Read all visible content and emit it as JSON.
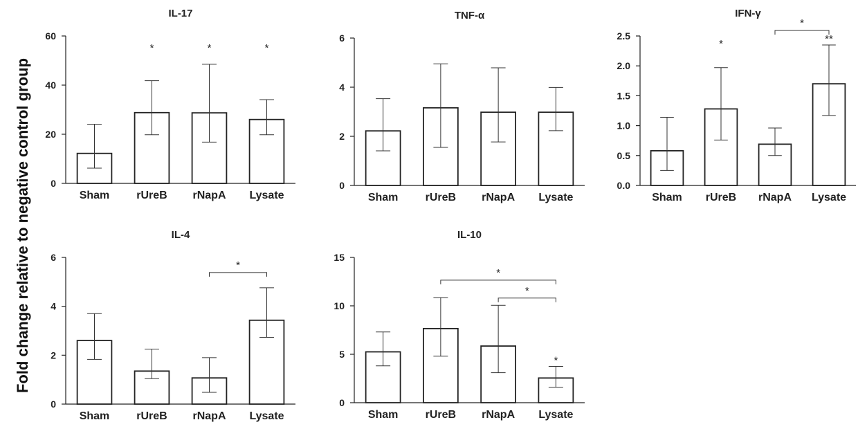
{
  "ylabel_common": "Fold change relative to negative control group",
  "chart_data": [
    {
      "type": "bar",
      "title": "IL-17",
      "categories": [
        "Sham",
        "rUreB",
        "rNapA",
        "Lysate"
      ],
      "values": [
        12.2,
        28.8,
        28.7,
        26.0
      ],
      "err_low": [
        6.2,
        19.8,
        16.8,
        19.8
      ],
      "err_high": [
        24.1,
        41.8,
        48.5,
        34.1
      ],
      "ylim": [
        0,
        60
      ],
      "yticks": [
        "0",
        "20",
        "40",
        "60"
      ],
      "significance": [
        "",
        "*",
        "*",
        "*"
      ],
      "brackets": []
    },
    {
      "type": "bar",
      "title": "TNF-α",
      "categories": [
        "Sham",
        "rUreB",
        "rNapA",
        "Lysate"
      ],
      "values": [
        2.22,
        3.16,
        2.98,
        2.98
      ],
      "err_low": [
        1.41,
        1.55,
        1.77,
        2.23
      ],
      "err_high": [
        3.53,
        4.95,
        4.79,
        3.99
      ],
      "ylim": [
        0,
        6
      ],
      "yticks": [
        "0",
        "2",
        "4",
        "6"
      ],
      "significance": [
        "",
        "",
        "",
        ""
      ],
      "brackets": []
    },
    {
      "type": "bar",
      "title": "IFN-γ",
      "categories": [
        "Sham",
        "rUreB",
        "rNapA",
        "Lysate"
      ],
      "values": [
        0.58,
        1.28,
        0.69,
        1.7
      ],
      "err_low": [
        0.25,
        0.76,
        0.5,
        1.17
      ],
      "err_high": [
        1.14,
        1.97,
        0.96,
        2.35
      ],
      "ylim": [
        0,
        2.5
      ],
      "yticks": [
        "0.0",
        "0.5",
        "1.0",
        "1.5",
        "2.0",
        "2.5"
      ],
      "significance": [
        "",
        "*",
        "",
        "**"
      ],
      "brackets": [
        {
          "from": 2,
          "to": 3,
          "label": "*",
          "level": 0
        }
      ]
    },
    {
      "type": "bar",
      "title": "IL-4",
      "categories": [
        "Sham",
        "rUreB",
        "rNapA",
        "Lysate"
      ],
      "values": [
        2.6,
        1.35,
        1.07,
        3.43
      ],
      "err_low": [
        1.83,
        1.04,
        0.48,
        2.73
      ],
      "err_high": [
        3.7,
        2.25,
        1.9,
        4.76
      ],
      "ylim": [
        0,
        6
      ],
      "yticks": [
        "0",
        "2",
        "4",
        "6"
      ],
      "significance": [
        "",
        "",
        "",
        ""
      ],
      "brackets": [
        {
          "from": 2,
          "to": 3,
          "label": "*",
          "level": 0
        }
      ]
    },
    {
      "type": "bar",
      "title": "IL-10",
      "categories": [
        "Sham",
        "rUreB",
        "rNapA",
        "Lysate"
      ],
      "values": [
        5.25,
        7.65,
        5.85,
        2.55
      ],
      "err_low": [
        3.8,
        4.8,
        3.1,
        1.6
      ],
      "err_high": [
        7.3,
        10.85,
        10.05,
        3.75
      ],
      "ylim": [
        0,
        15
      ],
      "yticks": [
        "0",
        "5",
        "10",
        "15"
      ],
      "significance": [
        "",
        "",
        "",
        "*"
      ],
      "brackets": [
        {
          "from": 1,
          "to": 3,
          "label": "*",
          "level": 1
        },
        {
          "from": 2,
          "to": 3,
          "label": "*",
          "level": 0
        }
      ]
    }
  ]
}
